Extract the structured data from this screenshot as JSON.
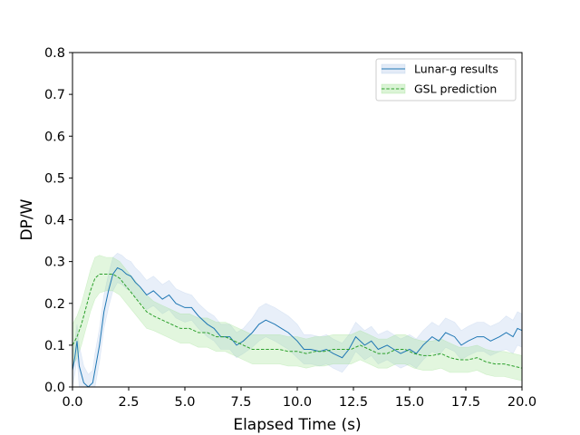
{
  "chart_data": {
    "type": "line",
    "xlabel": "Elapsed Time (s)",
    "ylabel": "DP/W",
    "xlim": [
      0,
      20
    ],
    "ylim": [
      0,
      0.8
    ],
    "x_ticks": [
      0,
      2.5,
      5,
      7.5,
      10,
      12.5,
      15,
      17.5,
      20
    ],
    "x_tick_labels": [
      "0.0",
      "2.5",
      "5.0",
      "7.5",
      "10.0",
      "12.5",
      "15.0",
      "17.5",
      "20.0"
    ],
    "y_ticks": [
      0,
      0.1,
      0.2,
      0.3,
      0.4,
      0.5,
      0.6,
      0.7,
      0.8
    ],
    "y_tick_labels": [
      "0.0",
      "0.1",
      "0.2",
      "0.3",
      "0.4",
      "0.5",
      "0.6",
      "0.7",
      "0.8"
    ],
    "grid": false,
    "legend_position": "upper right",
    "series": [
      {
        "name": "Lunar-g results",
        "color": "#1f77b4",
        "band_color": "#aec7e8",
        "line_style": "solid",
        "x": [
          0,
          0.1,
          0.2,
          0.3,
          0.5,
          0.7,
          0.9,
          1.0,
          1.2,
          1.4,
          1.6,
          1.8,
          2.0,
          2.2,
          2.4,
          2.6,
          2.8,
          3.0,
          3.3,
          3.6,
          4.0,
          4.3,
          4.6,
          5.0,
          5.3,
          5.6,
          6.0,
          6.3,
          6.6,
          7.0,
          7.3,
          7.6,
          8.0,
          8.3,
          8.6,
          9.0,
          9.3,
          9.6,
          10.0,
          10.3,
          10.6,
          11.0,
          11.3,
          11.6,
          12.0,
          12.3,
          12.6,
          13.0,
          13.3,
          13.6,
          14.0,
          14.3,
          14.6,
          15.0,
          15.3,
          15.6,
          16.0,
          16.3,
          16.6,
          17.0,
          17.3,
          17.6,
          18.0,
          18.3,
          18.6,
          19.0,
          19.3,
          19.6,
          19.8,
          20.0
        ],
        "y": [
          0.04,
          0.07,
          0.11,
          0.05,
          0.01,
          0.0,
          0.01,
          0.04,
          0.1,
          0.18,
          0.23,
          0.27,
          0.285,
          0.28,
          0.27,
          0.265,
          0.25,
          0.24,
          0.22,
          0.23,
          0.21,
          0.22,
          0.2,
          0.19,
          0.19,
          0.17,
          0.15,
          0.14,
          0.12,
          0.12,
          0.1,
          0.11,
          0.13,
          0.15,
          0.16,
          0.15,
          0.14,
          0.13,
          0.11,
          0.09,
          0.09,
          0.085,
          0.09,
          0.08,
          0.07,
          0.09,
          0.12,
          0.1,
          0.11,
          0.09,
          0.1,
          0.09,
          0.08,
          0.09,
          0.08,
          0.1,
          0.12,
          0.11,
          0.13,
          0.12,
          0.1,
          0.11,
          0.12,
          0.12,
          0.11,
          0.12,
          0.13,
          0.12,
          0.14,
          0.135
        ],
        "band_halfwidth": [
          0.04,
          0.04,
          0.04,
          0.05,
          0.04,
          0.03,
          0.03,
          0.04,
          0.04,
          0.04,
          0.04,
          0.04,
          0.035,
          0.035,
          0.035,
          0.035,
          0.035,
          0.035,
          0.035,
          0.035,
          0.035,
          0.035,
          0.035,
          0.035,
          0.03,
          0.03,
          0.03,
          0.03,
          0.03,
          0.03,
          0.03,
          0.03,
          0.035,
          0.04,
          0.04,
          0.04,
          0.04,
          0.04,
          0.04,
          0.035,
          0.035,
          0.035,
          0.035,
          0.035,
          0.035,
          0.035,
          0.035,
          0.035,
          0.035,
          0.035,
          0.035,
          0.035,
          0.035,
          0.035,
          0.035,
          0.035,
          0.035,
          0.035,
          0.035,
          0.035,
          0.035,
          0.035,
          0.035,
          0.035,
          0.035,
          0.035,
          0.04,
          0.04,
          0.04,
          0.04
        ]
      },
      {
        "name": "GSL prediction",
        "color": "#2ca02c",
        "band_color": "#98df8a",
        "line_style": "dashed",
        "x": [
          0,
          0.2,
          0.4,
          0.6,
          0.8,
          1.0,
          1.2,
          1.5,
          1.8,
          2.1,
          2.4,
          2.7,
          3.0,
          3.3,
          3.6,
          4.0,
          4.4,
          4.8,
          5.2,
          5.6,
          6.0,
          6.4,
          6.8,
          7.2,
          7.6,
          8.0,
          8.4,
          8.8,
          9.2,
          9.6,
          10.0,
          10.4,
          10.8,
          11.2,
          11.6,
          12.0,
          12.4,
          12.8,
          13.2,
          13.6,
          14.0,
          14.4,
          14.8,
          15.2,
          15.6,
          16.0,
          16.4,
          16.8,
          17.2,
          17.6,
          18.0,
          18.4,
          18.8,
          19.2,
          19.6,
          20.0
        ],
        "y": [
          0.1,
          0.12,
          0.15,
          0.19,
          0.23,
          0.26,
          0.27,
          0.27,
          0.27,
          0.26,
          0.24,
          0.22,
          0.2,
          0.18,
          0.17,
          0.16,
          0.15,
          0.14,
          0.14,
          0.13,
          0.13,
          0.12,
          0.12,
          0.11,
          0.1,
          0.09,
          0.09,
          0.09,
          0.09,
          0.085,
          0.085,
          0.08,
          0.085,
          0.085,
          0.09,
          0.09,
          0.09,
          0.1,
          0.09,
          0.08,
          0.08,
          0.09,
          0.09,
          0.08,
          0.075,
          0.075,
          0.08,
          0.07,
          0.065,
          0.065,
          0.07,
          0.06,
          0.055,
          0.055,
          0.05,
          0.045
        ],
        "band_halfwidth": [
          0.05,
          0.05,
          0.05,
          0.05,
          0.05,
          0.05,
          0.045,
          0.04,
          0.04,
          0.04,
          0.04,
          0.04,
          0.04,
          0.04,
          0.035,
          0.035,
          0.035,
          0.035,
          0.035,
          0.035,
          0.035,
          0.035,
          0.035,
          0.035,
          0.035,
          0.035,
          0.035,
          0.035,
          0.035,
          0.035,
          0.035,
          0.035,
          0.035,
          0.035,
          0.035,
          0.035,
          0.035,
          0.035,
          0.035,
          0.035,
          0.035,
          0.035,
          0.035,
          0.035,
          0.035,
          0.035,
          0.035,
          0.035,
          0.03,
          0.03,
          0.03,
          0.03,
          0.03,
          0.03,
          0.03,
          0.03
        ]
      }
    ]
  }
}
